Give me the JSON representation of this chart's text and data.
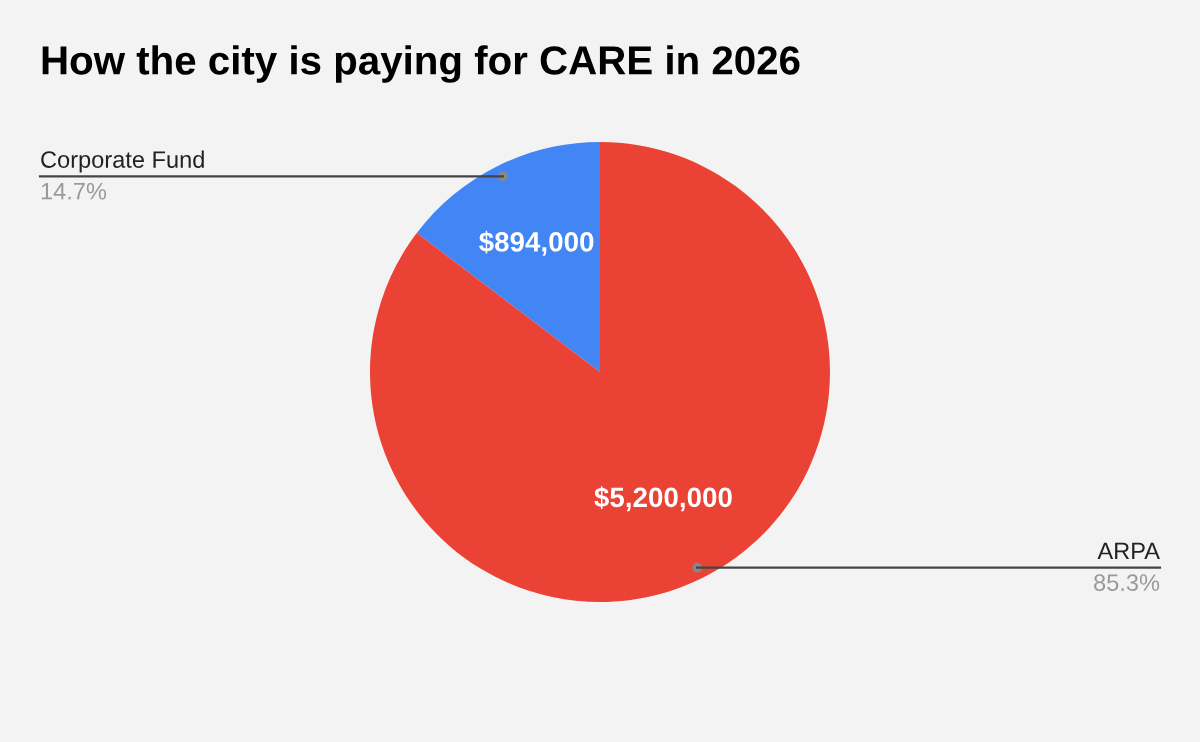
{
  "chart_data": {
    "type": "pie",
    "title": "How the city is paying for CARE in 2026",
    "categories": [
      "Corporate Fund",
      "ARPA"
    ],
    "values": [
      894000,
      5200000
    ],
    "colors": [
      "#4285f4",
      "#ea4335"
    ],
    "value_labels": [
      "$894,000",
      "$5,200,000"
    ],
    "annotations": [
      "14.7%",
      "85.3%"
    ],
    "legend": false
  }
}
